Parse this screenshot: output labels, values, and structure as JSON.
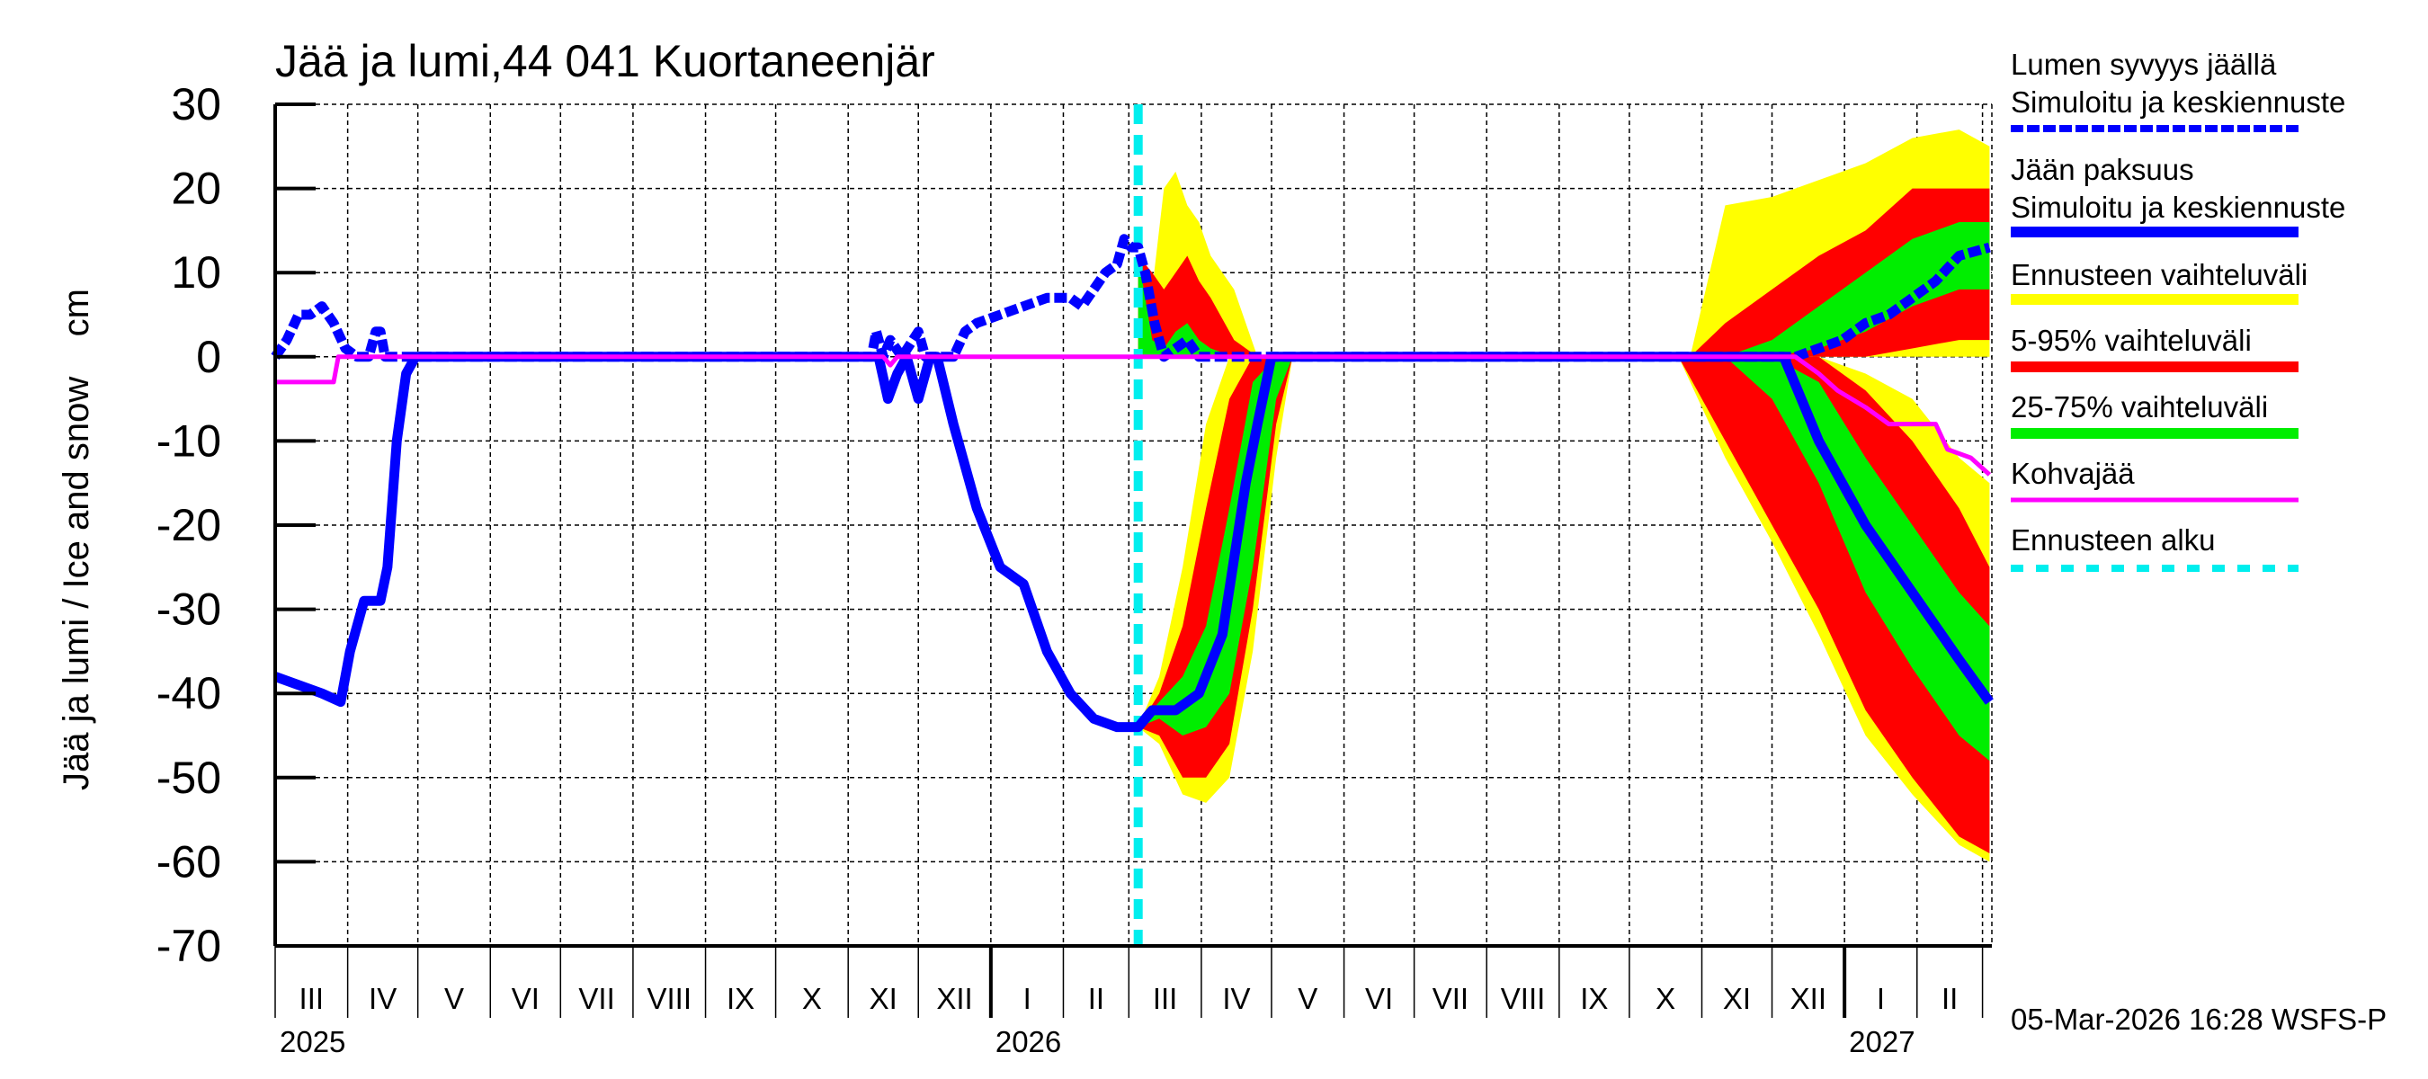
{
  "chart_data": {
    "type": "area",
    "title": "Jää ja lumi,44 041 Kuortaneenjär",
    "ylabel": "Jää ja lumi / Ice and snow    cm",
    "xlabel": "",
    "x_units": "days since 2025-03-01",
    "xlim": [
      0,
      734
    ],
    "ylim": [
      -70,
      30
    ],
    "yticks": [
      30,
      20,
      10,
      0,
      -10,
      -20,
      -30,
      -40,
      -50,
      -60,
      -70
    ],
    "grid": true,
    "months": [
      {
        "label": "III",
        "start": 0
      },
      {
        "label": "IV",
        "start": 31
      },
      {
        "label": "V",
        "start": 61
      },
      {
        "label": "VI",
        "start": 92
      },
      {
        "label": "VII",
        "start": 122
      },
      {
        "label": "VIII",
        "start": 153
      },
      {
        "label": "IX",
        "start": 184
      },
      {
        "label": "X",
        "start": 214
      },
      {
        "label": "XI",
        "start": 245
      },
      {
        "label": "XII",
        "start": 275
      },
      {
        "label": "I",
        "start": 306
      },
      {
        "label": "II",
        "start": 337
      },
      {
        "label": "III",
        "start": 365
      },
      {
        "label": "IV",
        "start": 396
      },
      {
        "label": "V",
        "start": 426
      },
      {
        "label": "VI",
        "start": 457
      },
      {
        "label": "VII",
        "start": 487
      },
      {
        "label": "VIII",
        "start": 518
      },
      {
        "label": "IX",
        "start": 549
      },
      {
        "label": "X",
        "start": 579
      },
      {
        "label": "XI",
        "start": 610
      },
      {
        "label": "XII",
        "start": 640
      },
      {
        "label": "I",
        "start": 671
      },
      {
        "label": "II",
        "start": 702
      },
      {
        "label": "",
        "start": 730
      }
    ],
    "years": [
      {
        "label": "2025",
        "day": 0
      },
      {
        "label": "2026",
        "day": 306
      },
      {
        "label": "2027",
        "day": 671
      }
    ],
    "forecast_start_day": 369,
    "timestamp": "05-Mar-2026 16:28 WSFS-P",
    "legend": {
      "placement": "right",
      "snow_title": "Lumen syvyys jäällä",
      "snow_sub": "Simuloitu ja keskiennuste",
      "ice_title": "Jään paksuus",
      "ice_sub": "Simuloitu ja keskiennuste",
      "range": "Ennusteen vaihteluväli",
      "p5_95": "5-95% vaihteluväli",
      "p25_75": "25-75% vaihteluväli",
      "slush": "Kohvajää",
      "fc_start": "Ennusteen alku"
    },
    "colors": {
      "snow": "#0000ff",
      "ice": "#0000ff",
      "range": "#ffff00",
      "p5_95": "#ff0000",
      "p25_75": "#00ee00",
      "slush": "#ff00ff",
      "fc_start": "#00eeee"
    },
    "bands": [
      {
        "name": "spring-ice",
        "x": [
          369,
          378,
          388,
          398,
          408,
          418,
          428,
          435
        ],
        "range": {
          "hi": [
            -44,
            -38,
            -25,
            -8,
            0,
            0,
            0,
            0
          ],
          "lo": [
            -44,
            -46,
            -52,
            -53,
            -50,
            -35,
            -12,
            0
          ]
        },
        "p5_95": {
          "hi": [
            -44,
            -40,
            -32,
            -18,
            -5,
            0,
            0,
            0
          ],
          "lo": [
            -44,
            -45,
            -50,
            -50,
            -46,
            -30,
            -8,
            0
          ]
        },
        "p25_75": {
          "hi": [
            -44,
            -41,
            -38,
            -32,
            -18,
            -3,
            0,
            0
          ],
          "lo": [
            -44,
            -43,
            -45,
            -44,
            -40,
            -25,
            -5,
            0
          ]
        }
      },
      {
        "name": "spring-snow",
        "x": [
          369,
          375,
          380,
          385,
          390,
          395,
          400,
          410,
          420
        ],
        "range": {
          "hi": [
            12,
            8,
            20,
            22,
            18,
            16,
            12,
            8,
            0
          ],
          "lo": [
            0,
            0,
            0,
            0,
            0,
            0,
            0,
            0,
            0
          ]
        },
        "p5_95": {
          "hi": [
            12,
            10,
            8,
            10,
            12,
            9,
            7,
            2,
            0
          ],
          "lo": [
            0,
            0,
            0,
            0,
            0,
            0,
            0,
            0,
            0
          ]
        },
        "p25_75": {
          "hi": [
            12,
            2,
            1,
            3,
            4,
            2,
            1,
            0,
            0
          ],
          "lo": [
            0,
            0,
            0,
            0,
            0,
            0,
            0,
            0,
            0
          ]
        }
      },
      {
        "name": "autumn-snow",
        "x": [
          605,
          620,
          640,
          660,
          680,
          700,
          720,
          733
        ],
        "range": {
          "hi": [
            0,
            18,
            19,
            21,
            23,
            26,
            27,
            25
          ],
          "lo": [
            0,
            0,
            0,
            0,
            0,
            0,
            0,
            0
          ]
        },
        "p5_95": {
          "hi": [
            0,
            4,
            8,
            12,
            15,
            20,
            20,
            20
          ],
          "lo": [
            0,
            0,
            0,
            0,
            0,
            1,
            2,
            2
          ]
        },
        "p25_75": {
          "hi": [
            0,
            0,
            2,
            6,
            10,
            14,
            16,
            16
          ],
          "lo": [
            0,
            0,
            0,
            1,
            3,
            6,
            8,
            8
          ]
        }
      },
      {
        "name": "autumn-ice",
        "x": [
          600,
          620,
          640,
          660,
          680,
          700,
          720,
          733
        ],
        "range": {
          "hi": [
            0,
            0,
            0,
            0,
            -2,
            -5,
            -12,
            -15
          ],
          "lo": [
            0,
            -12,
            -22,
            -33,
            -45,
            -52,
            -58,
            -60
          ]
        },
        "p5_95": {
          "hi": [
            0,
            0,
            0,
            0,
            -4,
            -10,
            -18,
            -25
          ],
          "lo": [
            0,
            -10,
            -20,
            -30,
            -42,
            -50,
            -57,
            -59
          ]
        },
        "p25_75": {
          "hi": [
            0,
            0,
            0,
            -3,
            -12,
            -20,
            -28,
            -32
          ],
          "lo": [
            0,
            0,
            -5,
            -15,
            -28,
            -37,
            -45,
            -48
          ]
        }
      }
    ],
    "series": [
      {
        "name": "snow-depth",
        "style": "dashed",
        "x": [
          0,
          5,
          10,
          15,
          20,
          25,
          30,
          35,
          40,
          43,
          45,
          47,
          50,
          60,
          255,
          257,
          260,
          263,
          268,
          275,
          278,
          285,
          290,
          295,
          300,
          310,
          320,
          330,
          340,
          345,
          350,
          355,
          360,
          363,
          366,
          369,
          372,
          376,
          380,
          385,
          390,
          395,
          400,
          430,
          650,
          660,
          670,
          680,
          690,
          700,
          710,
          720,
          733
        ],
        "y": [
          0,
          2,
          5,
          5,
          6,
          4,
          1,
          0,
          0,
          3,
          3,
          0,
          0,
          0,
          0,
          3,
          0,
          2,
          0,
          3,
          0,
          0,
          0,
          3,
          4,
          5,
          6,
          7,
          7,
          6,
          8,
          10,
          11,
          14,
          13,
          13,
          10,
          4,
          0,
          1,
          2,
          0,
          0,
          0,
          0,
          1,
          2,
          4,
          5,
          7,
          9,
          12,
          13
        ]
      },
      {
        "name": "ice-thickness",
        "style": "solid",
        "x": [
          0,
          10,
          20,
          28,
          32,
          38,
          45,
          48,
          52,
          56,
          60,
          258,
          262,
          266,
          270,
          275,
          280,
          283,
          290,
          300,
          310,
          320,
          330,
          340,
          350,
          360,
          369,
          375,
          385,
          395,
          405,
          415,
          420,
          426,
          645,
          660,
          680,
          700,
          720,
          733
        ],
        "y": [
          -38,
          -39,
          -40,
          -41,
          -35,
          -29,
          -29,
          -25,
          -10,
          -2,
          0,
          0,
          -5,
          -2,
          0,
          -5,
          0,
          0,
          -8,
          -18,
          -25,
          -27,
          -35,
          -40,
          -43,
          -44,
          -44,
          -42,
          -42,
          -40,
          -33,
          -15,
          -8,
          0,
          0,
          -10,
          -20,
          -28,
          -36,
          -41
        ]
      },
      {
        "name": "slush-ice",
        "style": "solid",
        "x": [
          0,
          25,
          27,
          260,
          263,
          266,
          650,
          660,
          668,
          680,
          690,
          710,
          715,
          725,
          733
        ],
        "y": [
          -3,
          -3,
          0,
          0,
          -1,
          0,
          0,
          -2,
          -4,
          -6,
          -8,
          -8,
          -11,
          -12,
          -14
        ]
      }
    ]
  }
}
